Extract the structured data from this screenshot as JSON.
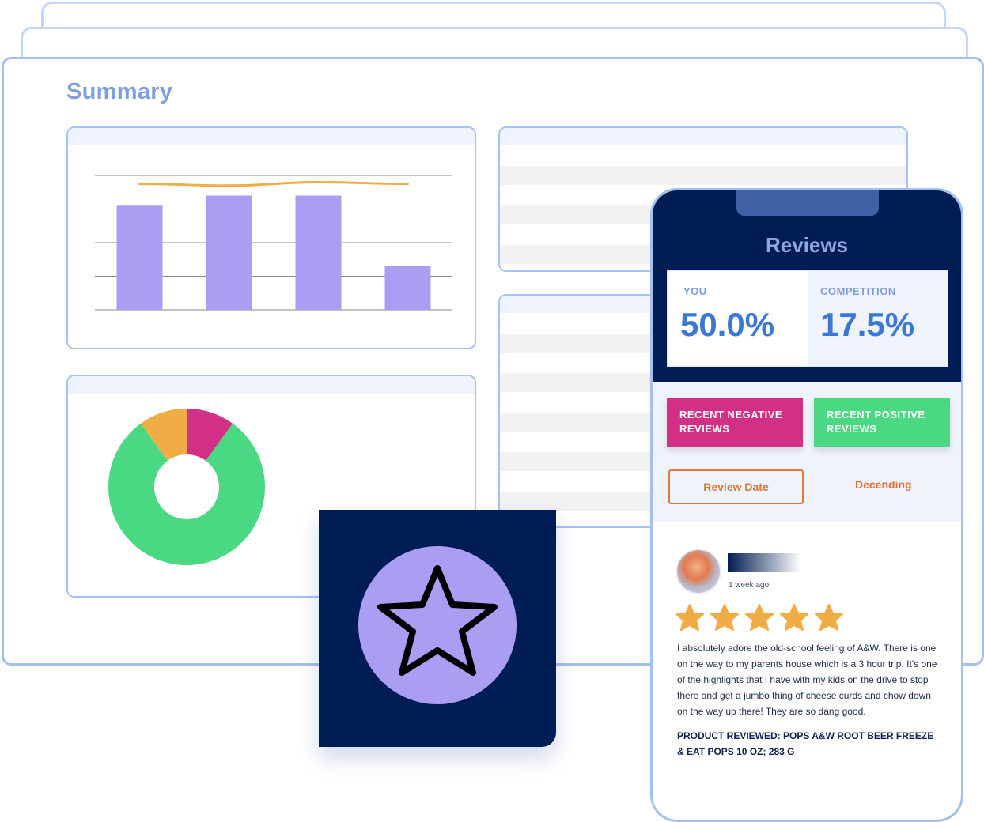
{
  "summary": {
    "title": "Summary",
    "bar_chart": {
      "bar_color": "#a99ef3",
      "line_color": "#f0ad45"
    },
    "donut_chart": {
      "colors": [
        "#4ad882",
        "#f0ad45",
        "#d22f86"
      ]
    }
  },
  "chart_data": [
    {
      "type": "bar",
      "categories": [
        "",
        "",
        "",
        ""
      ],
      "values": [
        62,
        68,
        68,
        26
      ],
      "ylim": [
        0,
        80
      ],
      "line_overlay": [
        75,
        74,
        76,
        75
      ],
      "grid": true,
      "title": ""
    },
    {
      "type": "pie",
      "labels": [
        "",
        "",
        ""
      ],
      "values": [
        80,
        10,
        10
      ],
      "title": ""
    }
  ],
  "star_tile": {
    "icon": "star-icon",
    "color": "#a99ef3"
  },
  "phone": {
    "title": "Reviews",
    "stats": {
      "you_label": "YOU",
      "you_value": "50.0%",
      "competition_label": "COMPETITION",
      "competition_value": "17.5%"
    },
    "buttons": {
      "negative": "RECENT NEGATIVE REVIEWS",
      "positive": "RECENT POSITIVE REVIEWS"
    },
    "sort": {
      "field": "Review Date",
      "order": "Decending"
    },
    "review": {
      "time": "1 week ago",
      "rating": 5,
      "text": "I absolutely adore the old-school feeling of A&W. There is one on the way to my parents house which is a 3 hour trip. It's one of the highlights that I have with my kids on the drive to stop there and get a jumbo thing of cheese curds and chow down on the way up there! They are so dang good.",
      "product": "PRODUCT REVIEWED: POPS A&W ROOT BEER FREEZE & EAT POPS 10 OZ; 283 G"
    }
  }
}
